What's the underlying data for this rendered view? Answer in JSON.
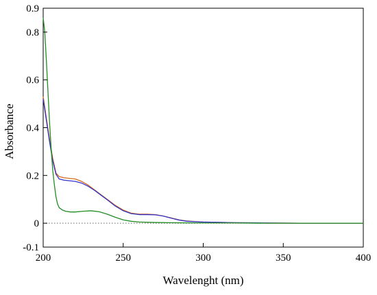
{
  "chart_data": {
    "type": "line",
    "xlabel": "Wavelenght (nm)",
    "ylabel": "Absorbance",
    "xlim": [
      200,
      400
    ],
    "ylim": [
      -0.1,
      0.9
    ],
    "xticks": [
      {
        "value": 200,
        "label": "200"
      },
      {
        "value": 250,
        "label": "250"
      },
      {
        "value": 300,
        "label": "300"
      },
      {
        "value": 350,
        "label": "350"
      },
      {
        "value": 400,
        "label": "400"
      }
    ],
    "yticks": [
      {
        "value": -0.1,
        "label": "-0.1"
      },
      {
        "value": 0,
        "label": "0"
      },
      {
        "value": 0.2,
        "label": "0.2"
      },
      {
        "value": 0.4,
        "label": "0.4"
      },
      {
        "value": 0.6,
        "label": "0.6"
      },
      {
        "value": 0.8,
        "label": "0.8"
      },
      {
        "value": 0.9,
        "label": "0.9"
      }
    ],
    "baseline": {
      "y": 0,
      "style": "dotted",
      "color": "#666666"
    },
    "grid": false,
    "series": [
      {
        "color": "#d2691e",
        "x": [
          200,
          202,
          204,
          206,
          208,
          210,
          213,
          216,
          220,
          224,
          228,
          232,
          236,
          240,
          245,
          250,
          255,
          260,
          265,
          270,
          275,
          280,
          285,
          290,
          300,
          320,
          340,
          360,
          380,
          400
        ],
        "y": [
          0.53,
          0.44,
          0.35,
          0.27,
          0.21,
          0.195,
          0.19,
          0.188,
          0.185,
          0.175,
          0.16,
          0.14,
          0.12,
          0.1,
          0.075,
          0.055,
          0.042,
          0.038,
          0.038,
          0.036,
          0.03,
          0.022,
          0.014,
          0.009,
          0.005,
          0.002,
          0.001,
          0.0,
          0.0,
          0.0
        ]
      },
      {
        "color": "#3333cc",
        "x": [
          200,
          202,
          204,
          206,
          208,
          210,
          213,
          216,
          220,
          224,
          228,
          232,
          236,
          240,
          245,
          250,
          255,
          260,
          265,
          270,
          275,
          280,
          285,
          290,
          300,
          320,
          340,
          360,
          380,
          400
        ],
        "y": [
          0.52,
          0.43,
          0.34,
          0.26,
          0.205,
          0.185,
          0.18,
          0.178,
          0.175,
          0.168,
          0.155,
          0.138,
          0.118,
          0.098,
          0.072,
          0.052,
          0.04,
          0.036,
          0.036,
          0.035,
          0.03,
          0.021,
          0.013,
          0.008,
          0.005,
          0.002,
          0.001,
          0.0,
          0.0,
          0.0
        ]
      },
      {
        "color": "#228b22",
        "x": [
          200,
          201,
          202,
          203,
          204,
          205,
          206,
          207,
          208,
          209,
          210,
          212,
          214,
          217,
          220,
          225,
          230,
          235,
          240,
          245,
          250,
          255,
          260,
          270,
          280,
          300,
          320,
          340,
          360,
          380,
          400
        ],
        "y": [
          0.86,
          0.8,
          0.68,
          0.55,
          0.42,
          0.31,
          0.22,
          0.16,
          0.11,
          0.08,
          0.065,
          0.055,
          0.05,
          0.047,
          0.047,
          0.05,
          0.052,
          0.048,
          0.038,
          0.025,
          0.014,
          0.008,
          0.005,
          0.003,
          0.002,
          0.001,
          0.001,
          0.0,
          0.0,
          0.0,
          0.0
        ]
      }
    ]
  }
}
